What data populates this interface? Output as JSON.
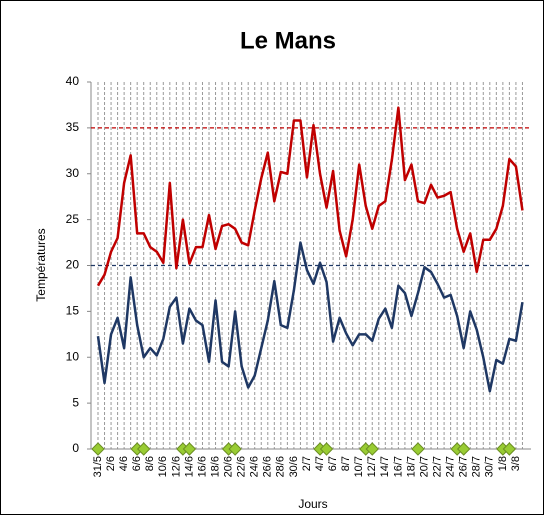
{
  "chart_data": {
    "type": "line",
    "title": "Le Mans",
    "x_label": "Jours",
    "y_label": "Températures",
    "categories": [
      "31/5",
      null,
      "2/6",
      null,
      "4/6",
      null,
      "6/6",
      null,
      "8/6",
      null,
      "10/6",
      null,
      "12/6",
      null,
      "14/6",
      null,
      "16/6",
      null,
      "18/6",
      null,
      "20/6",
      null,
      "22/6",
      null,
      "24/6",
      null,
      "26/6",
      null,
      "28/6",
      null,
      "30/6",
      null,
      "2/7",
      null,
      "4/7",
      null,
      "6/7",
      null,
      "8/7",
      null,
      "10/7",
      null,
      "12/7",
      null,
      "14/7",
      null,
      "16/7",
      null,
      "18/7",
      null,
      "20/7",
      null,
      "22/7",
      null,
      "24/7",
      null,
      "26/7",
      null,
      "28/7",
      null,
      "30/7",
      null,
      "1/8",
      null,
      "3/8",
      null
    ],
    "series": [
      {
        "color": "#c00000",
        "values": [
          17.8,
          19,
          21.5,
          23,
          29,
          32,
          23.5,
          23.5,
          22,
          21.5,
          20.3,
          29,
          19.7,
          25,
          20.2,
          22,
          22,
          25.5,
          21.8,
          24.3,
          24.5,
          24,
          22.5,
          22.2,
          26,
          29.5,
          32.3,
          27,
          30.2,
          30,
          35.8,
          35.8,
          29.6,
          35.3,
          30,
          26.3,
          30.3,
          23.8,
          21,
          25,
          31,
          26.5,
          24,
          26.5,
          27,
          31.5,
          37.2,
          29.3,
          31,
          27,
          26.8,
          28.8,
          27.4,
          27.6,
          28,
          24,
          21.5,
          23.5,
          19.3,
          22.8,
          22.8,
          24,
          26.5,
          31.6,
          30.8,
          26
        ]
      },
      {
        "color": "#1f3864",
        "values": [
          12.3,
          7.2,
          12.5,
          14.3,
          11,
          18.7,
          13.5,
          10,
          11,
          10.2,
          12,
          15.5,
          16.5,
          11.5,
          15.3,
          14,
          13.5,
          9.5,
          16.2,
          9.5,
          9,
          15,
          9,
          6.7,
          8,
          11,
          14,
          18.3,
          13.5,
          13.2,
          17.3,
          22.5,
          19.5,
          18,
          20.3,
          18.2,
          11.7,
          14.3,
          12.6,
          11.3,
          12.5,
          12.5,
          11.8,
          14.2,
          15.3,
          13.2,
          17.8,
          17,
          14.5,
          17,
          19.8,
          19.3,
          18,
          16.5,
          16.8,
          14.5,
          11,
          15,
          13,
          10,
          6.3,
          9.7,
          9.3,
          12,
          11.8,
          16
        ]
      },
      {
        "color": "#99cc33",
        "marker": "diamond",
        "values": [
          0,
          null,
          null,
          null,
          null,
          null,
          0,
          0,
          null,
          null,
          null,
          null,
          null,
          0,
          0,
          null,
          null,
          null,
          null,
          null,
          0,
          0,
          null,
          null,
          null,
          null,
          null,
          null,
          null,
          null,
          null,
          null,
          null,
          null,
          0,
          0,
          null,
          null,
          null,
          null,
          null,
          0,
          0,
          null,
          null,
          null,
          null,
          null,
          null,
          0,
          null,
          null,
          null,
          null,
          null,
          0,
          0,
          null,
          null,
          null,
          null,
          null,
          0,
          0,
          null,
          null
        ]
      }
    ],
    "reference_lines": [
      {
        "value": 35,
        "color": "#c00000"
      },
      {
        "value": 20,
        "color": "#1f3864"
      }
    ],
    "ylim": [
      0,
      40
    ],
    "yticks": [
      0,
      5,
      10,
      15,
      20,
      25,
      30,
      35,
      40
    ],
    "grid": true
  }
}
